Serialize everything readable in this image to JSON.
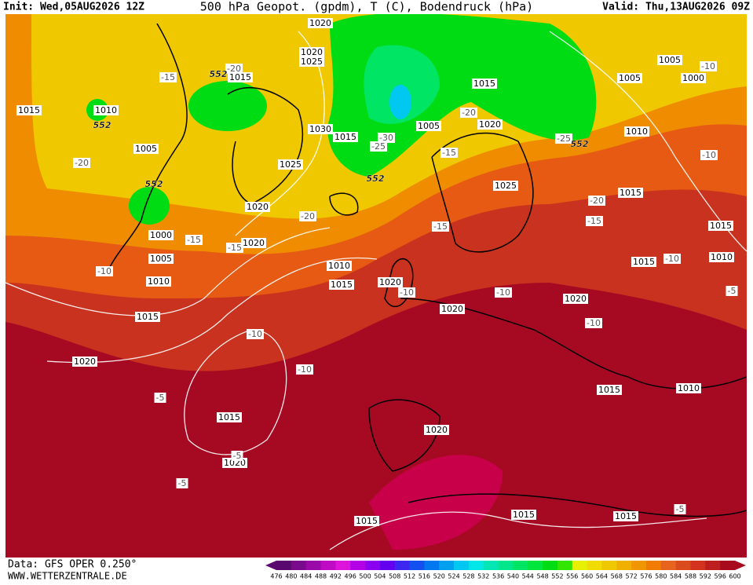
{
  "header": {
    "init": "Init: Wed,05AUG2026 12Z",
    "title": "500 hPa Geopot. (gpdm), T (C), Bodendruck (hPa)",
    "valid": "Valid: Thu,13AUG2026 09Z"
  },
  "map": {
    "isobar_labels": [
      "1015",
      "1010",
      "1005",
      "1000",
      "1005",
      "1010",
      "1015",
      "1020",
      "1020",
      "1020",
      "1025",
      "1015",
      "1030",
      "1015",
      "1025",
      "1020",
      "1020",
      "1010",
      "1015",
      "1020",
      "1020",
      "1005",
      "1015",
      "1020",
      "1025",
      "1005",
      "1000",
      "1005",
      "1010",
      "1015",
      "1015",
      "1015",
      "1010",
      "1020",
      "1015",
      "1010",
      "1015",
      "1020",
      "1020",
      "1015",
      "1015",
      "1015"
    ],
    "temperature_labels": [
      "-15",
      "-20",
      "-20",
      "-15",
      "-15",
      "-10",
      "-20",
      "-30",
      "-25",
      "-20",
      "-15",
      "-15",
      "-25",
      "-20",
      "-15",
      "-10",
      "-10",
      "-10",
      "-10",
      "-10",
      "-10",
      "-5",
      "-10",
      "-10",
      "-5",
      "-5",
      "-5",
      "-5"
    ],
    "geopotential_labels": [
      "552",
      "552",
      "552",
      "552",
      "552"
    ]
  },
  "footer": {
    "source": "Data: GFS OPER 0.250°",
    "website": "WWW.WETTERZENTRALE.DE"
  },
  "colorbar": {
    "labels": [
      "476",
      "480",
      "484",
      "488",
      "492",
      "496",
      "500",
      "504",
      "508",
      "512",
      "516",
      "520",
      "524",
      "528",
      "532",
      "536",
      "540",
      "544",
      "548",
      "552",
      "556",
      "560",
      "564",
      "568",
      "572",
      "576",
      "580",
      "584",
      "588",
      "592",
      "596",
      "600"
    ],
    "colors": [
      "#5a0a6e",
      "#7a0a8c",
      "#9a0aa8",
      "#c00ac4",
      "#dc14dc",
      "#b400e6",
      "#8c00f0",
      "#6400f0",
      "#3c28f0",
      "#1450f0",
      "#0078f0",
      "#00a0f0",
      "#00c8f0",
      "#00e6e6",
      "#00e6b4",
      "#00e68c",
      "#00e664",
      "#00e63c",
      "#00dc14",
      "#32e600",
      "#e6f000",
      "#f0dc00",
      "#f0c800",
      "#f0b000",
      "#f09600",
      "#f07c00",
      "#e6641e",
      "#dc4b1e",
      "#d2321e",
      "#be1e1e",
      "#a80a1e"
    ]
  }
}
